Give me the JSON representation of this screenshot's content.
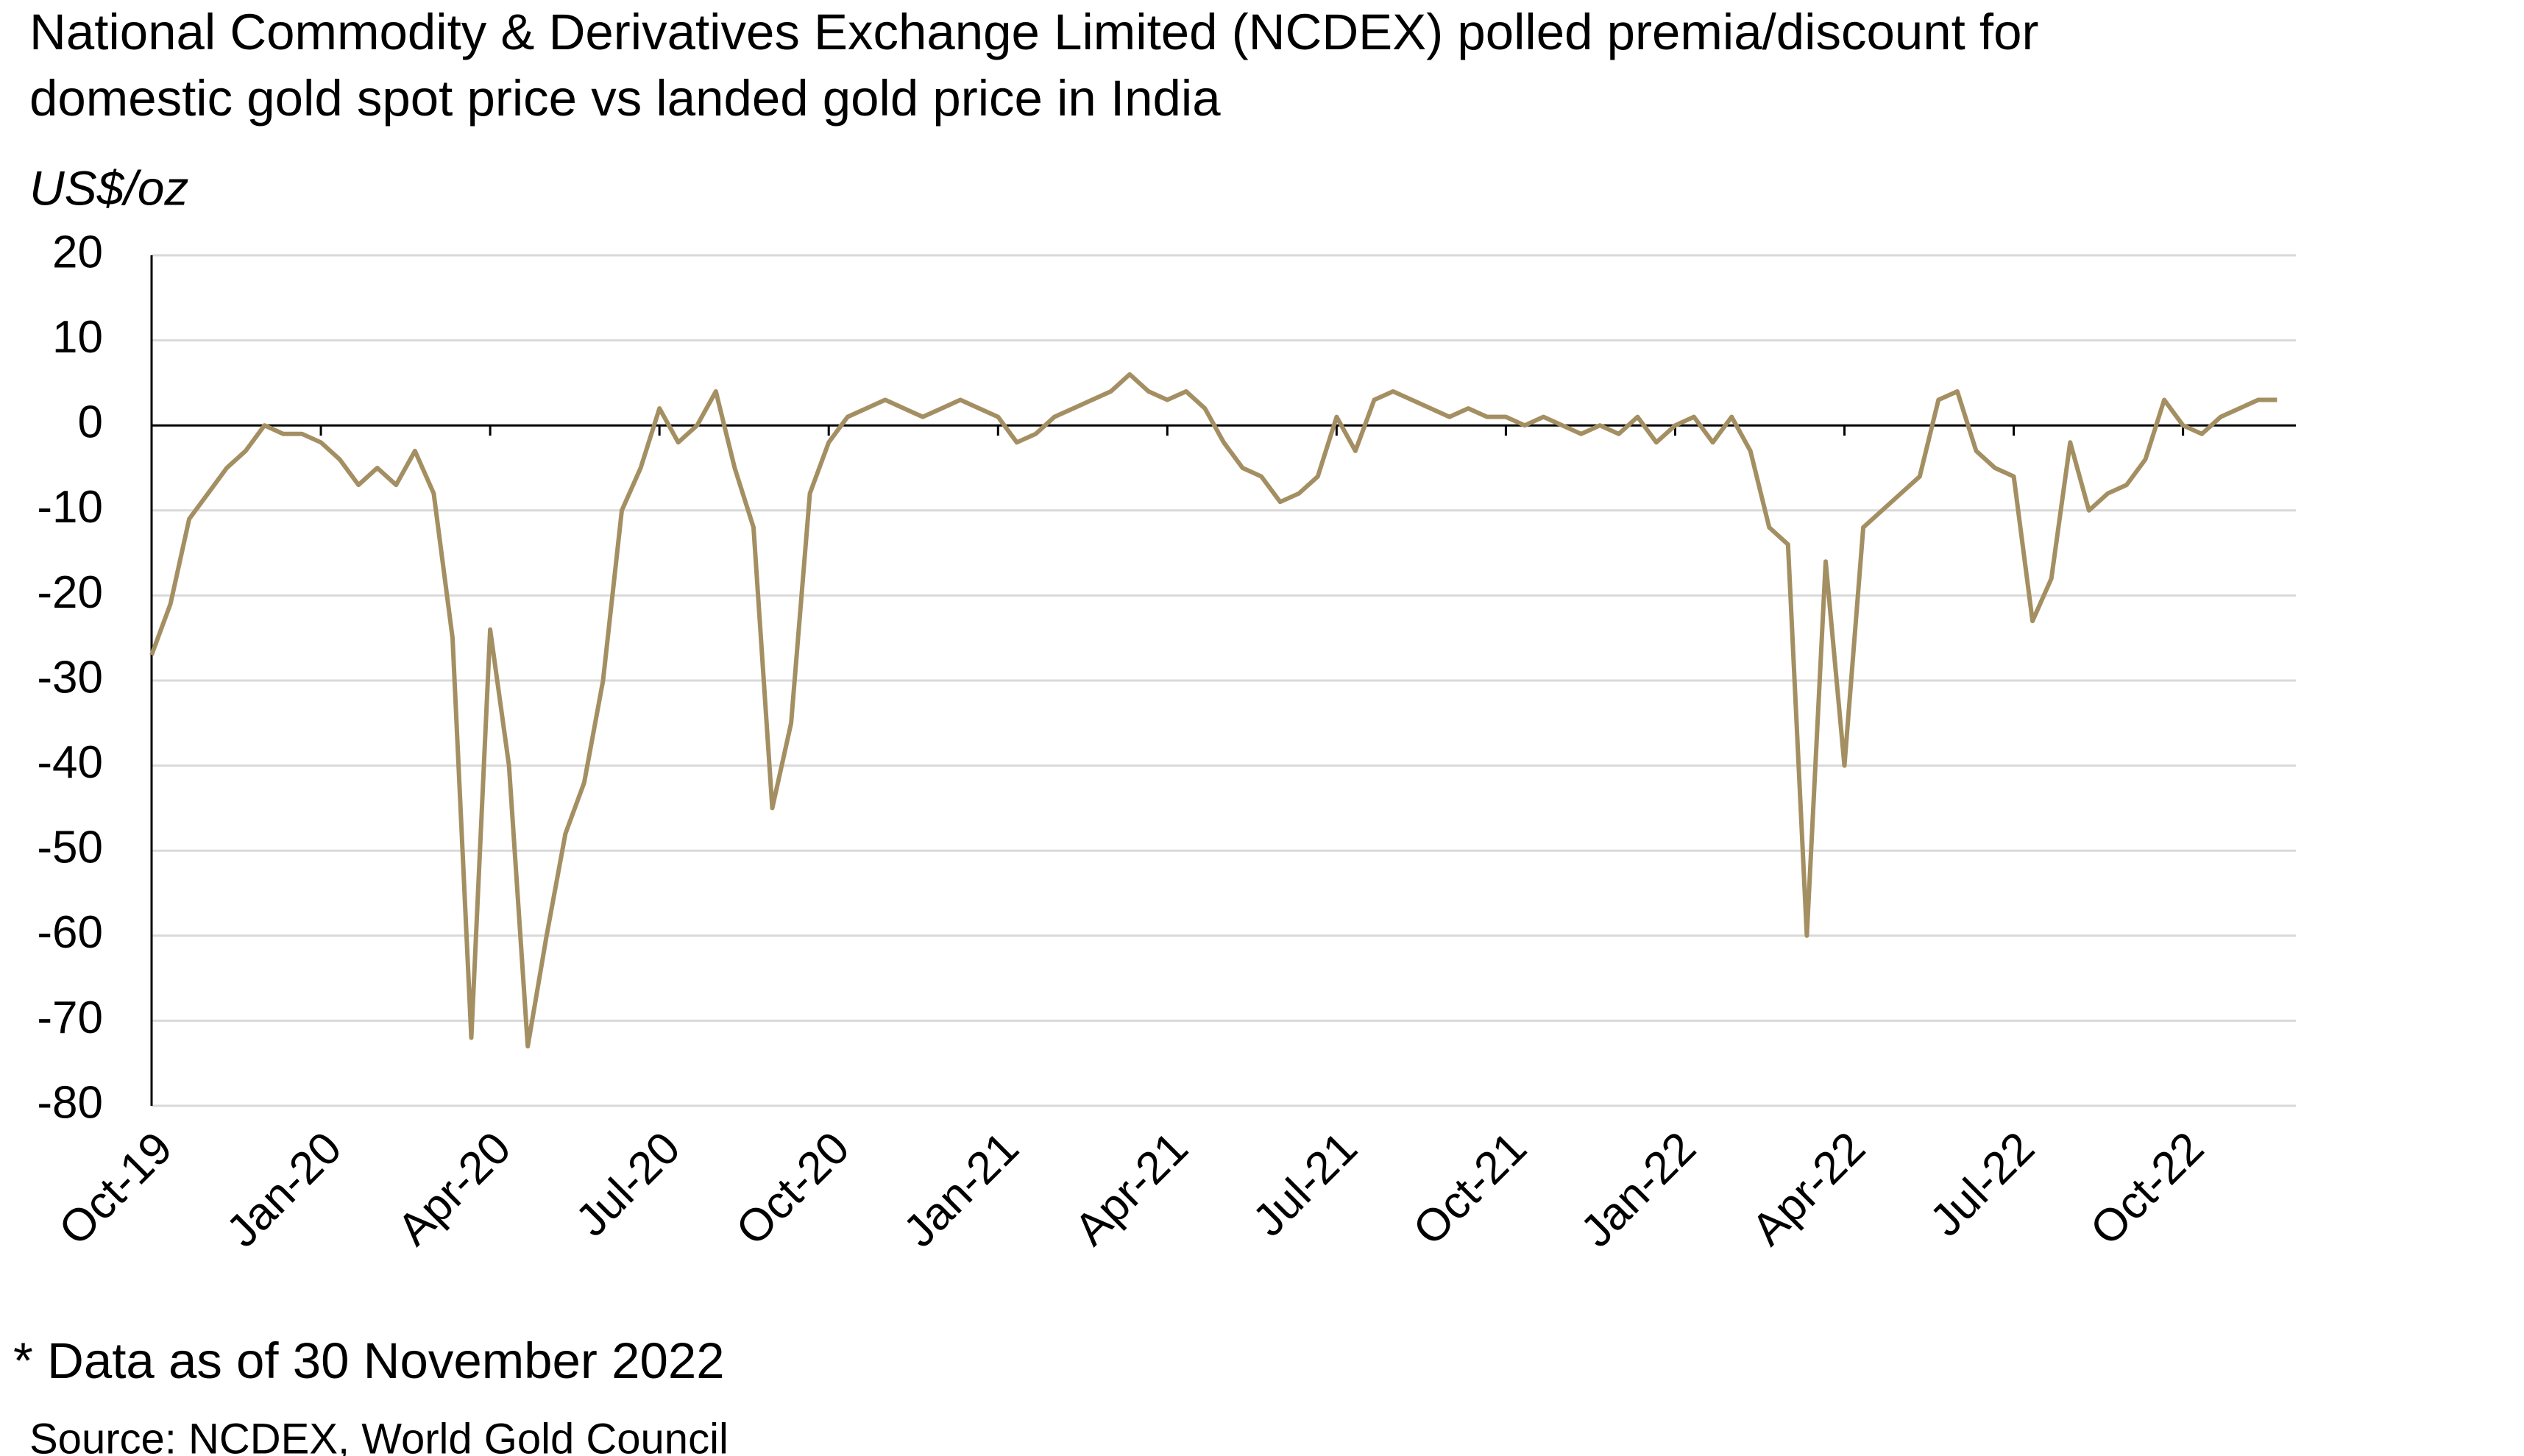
{
  "chart_data": {
    "type": "line",
    "title": [
      "National Commodity & Derivatives Exchange Limited (NCDEX) polled premia/discount for",
      "domestic gold spot price vs landed gold price in India"
    ],
    "y_label": "US$/oz",
    "note": "* Data as of 30 November 2022",
    "source": "Source: NCDEX, World Gold Council",
    "color": "#a38f62",
    "grid": true,
    "ylim": [
      -80,
      20
    ],
    "yticks": [
      -80,
      -70,
      -60,
      -50,
      -40,
      -30,
      -20,
      -10,
      0,
      10,
      20
    ],
    "categories": [
      "Oct-19",
      null,
      null,
      null,
      null,
      null,
      null,
      null,
      null,
      "Jan-20",
      null,
      null,
      null,
      null,
      null,
      null,
      null,
      null,
      "Apr-20",
      null,
      null,
      null,
      null,
      null,
      null,
      null,
      null,
      "Jul-20",
      null,
      null,
      null,
      null,
      null,
      null,
      null,
      null,
      "Oct-20",
      null,
      null,
      null,
      null,
      null,
      null,
      null,
      null,
      "Jan-21",
      null,
      null,
      null,
      null,
      null,
      null,
      null,
      null,
      "Apr-21",
      null,
      null,
      null,
      null,
      null,
      null,
      null,
      null,
      "Jul-21",
      null,
      null,
      null,
      null,
      null,
      null,
      null,
      null,
      "Oct-21",
      null,
      null,
      null,
      null,
      null,
      null,
      null,
      null,
      "Jan-22",
      null,
      null,
      null,
      null,
      null,
      null,
      null,
      null,
      "Apr-22",
      null,
      null,
      null,
      null,
      null,
      null,
      null,
      null,
      "Jul-22",
      null,
      null,
      null,
      null,
      null,
      null,
      null,
      null,
      "Oct-22",
      null,
      null,
      null,
      null,
      null
    ],
    "values": [
      -27,
      -21,
      -11,
      -8,
      -5,
      -3,
      0,
      -1,
      -1,
      -2,
      -4,
      -7,
      -5,
      -7,
      -3,
      -8,
      -25,
      -72,
      -24,
      -40,
      -73,
      -60,
      -48,
      -42,
      -30,
      -10,
      -5,
      2,
      -2,
      0,
      4,
      -5,
      -12,
      -45,
      -35,
      -8,
      -2,
      1,
      2,
      3,
      2,
      1,
      2,
      3,
      2,
      1,
      -2,
      -1,
      1,
      2,
      3,
      4,
      6,
      4,
      3,
      4,
      2,
      -2,
      -5,
      -6,
      -9,
      -8,
      -6,
      1,
      -3,
      3,
      4,
      3,
      2,
      1,
      2,
      1,
      1,
      0,
      1,
      0,
      -1,
      0,
      -1,
      1,
      -2,
      0,
      1,
      -2,
      1,
      -3,
      -12,
      -14,
      -60,
      -16,
      -40,
      -12,
      -10,
      -8,
      -6,
      3,
      4,
      -3,
      -5,
      -6,
      -23,
      -18,
      -2,
      -10,
      -8,
      -7,
      -4,
      3,
      0,
      -1,
      1,
      2,
      3,
      3
    ]
  }
}
